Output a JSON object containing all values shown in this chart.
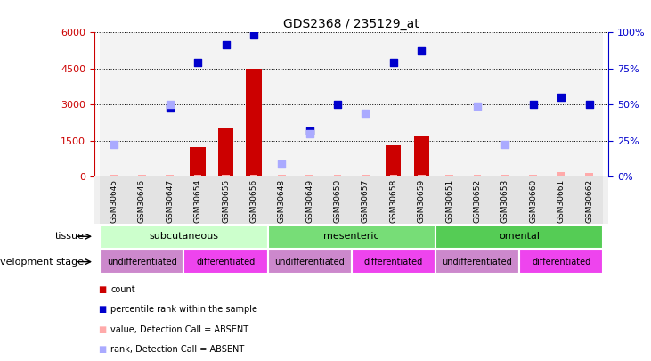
{
  "title": "GDS2368 / 235129_at",
  "samples": [
    "GSM30645",
    "GSM30646",
    "GSM30647",
    "GSM30654",
    "GSM30655",
    "GSM30656",
    "GSM30648",
    "GSM30649",
    "GSM30650",
    "GSM30657",
    "GSM30658",
    "GSM30659",
    "GSM30651",
    "GSM30652",
    "GSM30653",
    "GSM30660",
    "GSM30661",
    "GSM30662"
  ],
  "bar_values": [
    0,
    0,
    0,
    1250,
    2000,
    4500,
    0,
    0,
    0,
    0,
    1300,
    1700,
    0,
    0,
    0,
    0,
    0,
    0
  ],
  "bar_color": "#cc0000",
  "blue_squares": [
    null,
    null,
    2850,
    4750,
    5500,
    5900,
    null,
    1900,
    3000,
    null,
    4750,
    5250,
    null,
    null,
    null,
    3000,
    3300,
    3000
  ],
  "blue_color": "#0000cc",
  "pink_bars": [
    80,
    100,
    80,
    80,
    80,
    80,
    80,
    80,
    80,
    80,
    80,
    80,
    80,
    80,
    80,
    80,
    200,
    150
  ],
  "pink_color": "#ffaaaa",
  "light_blue_squares": [
    1350,
    null,
    3000,
    null,
    null,
    null,
    550,
    1800,
    null,
    2650,
    null,
    null,
    null,
    2950,
    1350,
    null,
    null,
    null
  ],
  "light_blue_color": "#aaaaff",
  "ylim_left": [
    0,
    6000
  ],
  "ylim_right": [
    0,
    100
  ],
  "yticks_left": [
    0,
    1500,
    3000,
    4500,
    6000
  ],
  "yticks_right": [
    0,
    25,
    50,
    75,
    100
  ],
  "tissue_groups": [
    {
      "label": "subcutaneous",
      "start": 0,
      "end": 6,
      "color": "#ccffcc"
    },
    {
      "label": "mesenteric",
      "start": 6,
      "end": 12,
      "color": "#77dd77"
    },
    {
      "label": "omental",
      "start": 12,
      "end": 18,
      "color": "#55cc55"
    }
  ],
  "dev_stage_groups": [
    {
      "label": "undifferentiated",
      "start": 0,
      "end": 3,
      "color": "#cc88cc"
    },
    {
      "label": "differentiated",
      "start": 3,
      "end": 6,
      "color": "#ee44ee"
    },
    {
      "label": "undifferentiated",
      "start": 6,
      "end": 9,
      "color": "#cc88cc"
    },
    {
      "label": "differentiated",
      "start": 9,
      "end": 12,
      "color": "#ee44ee"
    },
    {
      "label": "undifferentiated",
      "start": 12,
      "end": 15,
      "color": "#cc88cc"
    },
    {
      "label": "differentiated",
      "start": 15,
      "end": 18,
      "color": "#ee44ee"
    }
  ],
  "tissue_label": "tissue",
  "dev_stage_label": "development stage",
  "legend_items": [
    {
      "label": "count",
      "color": "#cc0000"
    },
    {
      "label": "percentile rank within the sample",
      "color": "#0000cc"
    },
    {
      "label": "value, Detection Call = ABSENT",
      "color": "#ffaaaa"
    },
    {
      "label": "rank, Detection Call = ABSENT",
      "color": "#aaaaff"
    }
  ],
  "grid_color": "black",
  "left_axis_color": "#cc0000",
  "right_axis_color": "#0000cc",
  "bg_color": "#f0f0f0"
}
